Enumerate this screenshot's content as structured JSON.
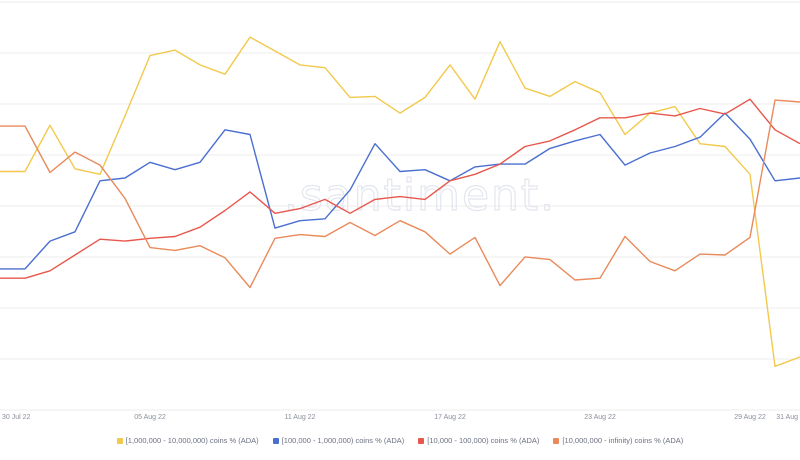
{
  "watermark": ".santiment.",
  "chart_data": {
    "type": "line",
    "title": "",
    "xlabel": "",
    "ylabel": "",
    "grid": true,
    "legend_position": "bottom",
    "x_ticks": [
      "30 Jul 22",
      "05 Aug 22",
      "11 Aug 22",
      "17 Aug 22",
      "23 Aug 22",
      "29 Aug 22",
      "31 Aug"
    ],
    "series": [
      {
        "name": "[1,000,000 - 10,000,000) coins % (ADA)",
        "color": "#f2c94c",
        "values": [
          55.5,
          55.5,
          60.5,
          55.8,
          55.2,
          61.5,
          68.0,
          68.6,
          67.0,
          66.0,
          70.0,
          68.5,
          67.0,
          66.7,
          63.5,
          63.6,
          61.8,
          63.5,
          67.0,
          63.3,
          69.5,
          64.5,
          63.6,
          65.2,
          64.0,
          59.5,
          61.8,
          62.5,
          58.5,
          58.2,
          55.2,
          34.5,
          35.5
        ]
      },
      {
        "name": "[100,000 - 1,000,000) coins % (ADA)",
        "color": "#4a6fd1",
        "values": [
          45.0,
          45.0,
          48.0,
          49.0,
          54.5,
          54.8,
          56.5,
          55.7,
          56.5,
          60.0,
          59.5,
          49.4,
          50.2,
          50.4,
          53.5,
          58.5,
          55.5,
          55.7,
          54.5,
          56.0,
          56.3,
          56.3,
          58.0,
          58.8,
          59.5,
          56.2,
          57.5,
          58.2,
          59.2,
          61.8,
          59.0,
          54.5,
          54.8
        ]
      },
      {
        "name": "[10,000 - 100,000) coins % (ADA)",
        "color": "#e8574c",
        "values": [
          44.0,
          44.0,
          44.8,
          46.5,
          48.2,
          48.0,
          48.3,
          48.5,
          49.5,
          51.3,
          53.3,
          51.0,
          51.5,
          52.5,
          51.0,
          52.5,
          52.8,
          52.5,
          54.5,
          55.2,
          56.3,
          58.2,
          58.8,
          60.0,
          61.3,
          61.3,
          61.8,
          61.5,
          62.3,
          61.7,
          63.3,
          60.0,
          58.5
        ]
      },
      {
        "name": "[10,000,000 - infinity) coins % (ADA)",
        "color": "#e98a5b",
        "values": [
          60.4,
          60.4,
          55.4,
          57.6,
          56.2,
          52.6,
          47.3,
          47.0,
          47.5,
          46.2,
          43.0,
          48.3,
          48.7,
          48.5,
          50.0,
          48.6,
          50.2,
          49.0,
          46.6,
          48.4,
          43.2,
          46.3,
          46.0,
          43.8,
          44.0,
          48.5,
          45.8,
          44.8,
          46.6,
          46.5,
          48.4,
          63.2,
          63.0
        ]
      },
      {
        "name": "_unused",
        "color": "",
        "values": []
      }
    ],
    "ylim": [
      30,
      74
    ]
  }
}
